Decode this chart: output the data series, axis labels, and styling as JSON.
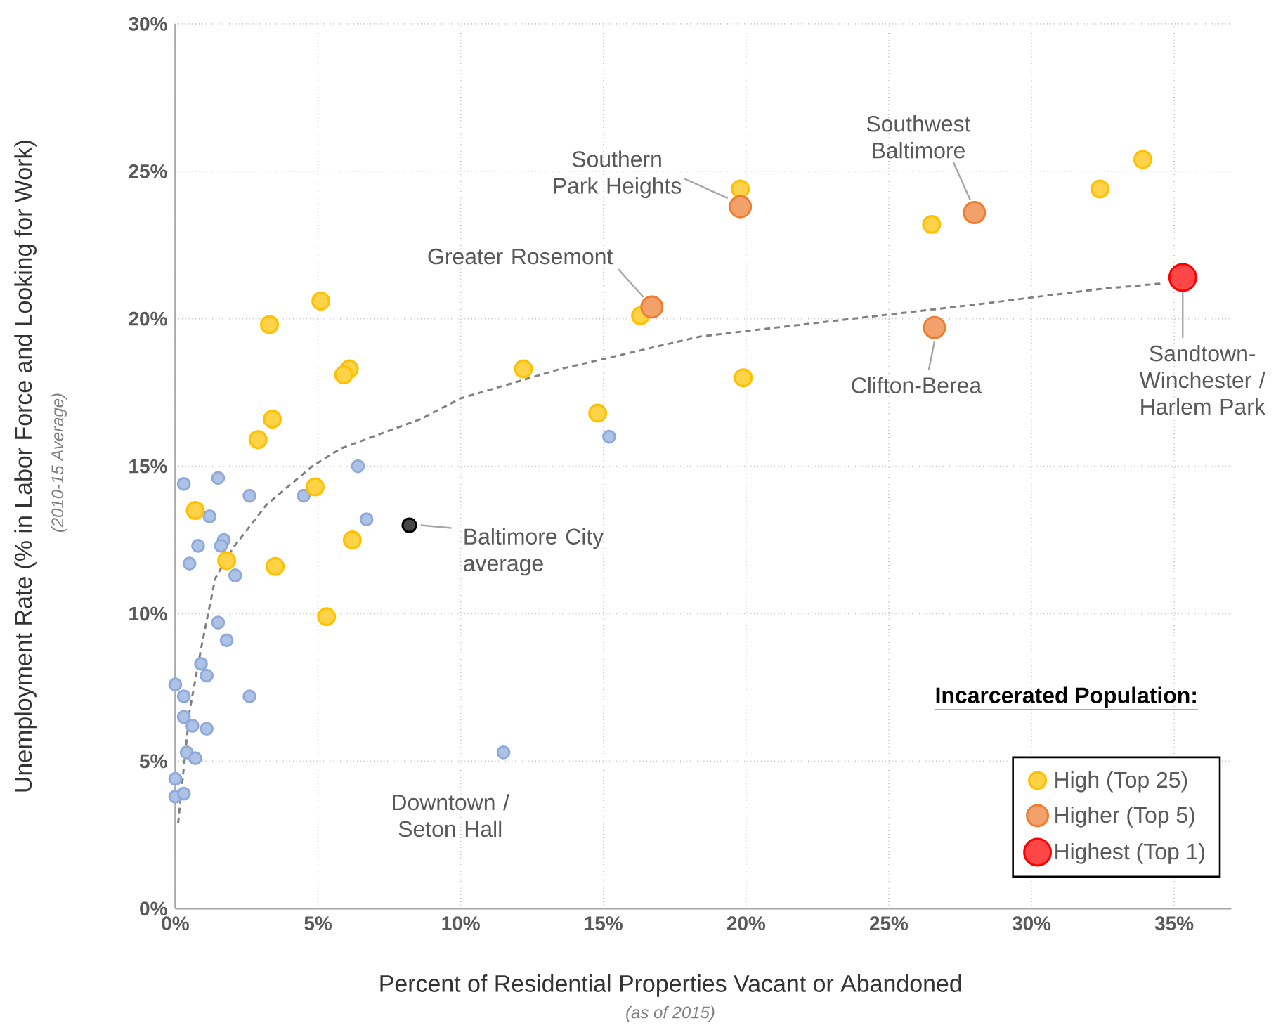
{
  "chart_data": {
    "type": "scatter",
    "xlabel": "Percent of Residential Properties Vacant or Abandoned",
    "ylabel": "Unemployment Rate (% in Labor Force and Looking for Work)",
    "legend_title": "Incarcerated Population:",
    "legend": "bottom right",
    "grid": true,
    "marker": "circle",
    "xlim": [
      0,
      37
    ],
    "ylim": [
      0,
      30
    ],
    "xticks": [
      {
        "value": 0,
        "label": "0%"
      },
      {
        "value": 5,
        "label": "5%"
      },
      {
        "value": 10,
        "label": "10%"
      },
      {
        "value": 15,
        "label": "15%"
      },
      {
        "value": 20,
        "label": "20%"
      },
      {
        "value": 25,
        "label": "25%"
      },
      {
        "value": 30,
        "label": "30%"
      },
      {
        "value": 35,
        "label": "35%"
      }
    ],
    "yticks": [
      {
        "value": 0,
        "label": "0%"
      },
      {
        "value": 5,
        "label": "5%"
      },
      {
        "value": 10,
        "label": "10%"
      },
      {
        "value": 15,
        "label": "15%"
      },
      {
        "value": 20,
        "label": "20%"
      },
      {
        "value": 25,
        "label": "25%"
      },
      {
        "value": 30,
        "label": "30%"
      }
    ],
    "series": [
      {
        "color": "#8eaadb",
        "x": [
          0.3,
          1.5,
          2.6,
          4.5,
          6.4,
          1.2,
          6.7,
          0.8,
          1.7,
          1.6,
          0.5,
          2.1,
          1.5,
          1.8,
          0.9,
          1.1,
          0.0,
          0.3,
          2.6,
          0.3,
          0.6,
          1.1,
          0.4,
          0.7,
          0.0,
          0.0,
          0.3,
          15.2,
          11.5
        ],
        "values": [
          14.4,
          14.6,
          14.0,
          14.0,
          15.0,
          13.3,
          13.2,
          12.3,
          12.5,
          12.3,
          11.7,
          11.3,
          9.7,
          9.1,
          8.3,
          7.9,
          7.6,
          7.2,
          7.2,
          6.5,
          6.2,
          6.1,
          5.3,
          5.1,
          4.4,
          3.8,
          3.9,
          16.0,
          5.3
        ]
      },
      {
        "color": "#000000",
        "x": [
          8.2
        ],
        "values": [
          13.0
        ]
      },
      {
        "name": "High (Top 25)",
        "color": "#ffc000",
        "x": [
          0.7,
          4.9,
          6.2,
          1.8,
          3.5,
          5.3,
          5.1,
          3.3,
          6.1,
          5.9,
          3.4,
          2.9,
          19.8,
          33.9,
          32.4,
          26.5,
          16.3,
          19.9,
          14.8,
          12.2
        ],
        "values": [
          13.5,
          14.3,
          12.5,
          11.8,
          11.6,
          9.9,
          20.6,
          19.8,
          18.3,
          18.1,
          16.6,
          15.9,
          24.4,
          25.4,
          24.4,
          23.2,
          20.1,
          18.0,
          16.8,
          18.3
        ]
      },
      {
        "name": "Higher (Top 5)",
        "color": "#ed7d31",
        "x": [
          19.8,
          28.0,
          16.7,
          26.6
        ],
        "values": [
          23.8,
          23.6,
          20.4,
          19.7
        ]
      },
      {
        "name": "Highest (Top 1)",
        "color": "#ff0000",
        "x": [
          35.3
        ],
        "values": [
          21.4
        ]
      },
      {
        "type": "line",
        "marker": "none",
        "line_style": "dashed",
        "color": "#808080",
        "x": [
          0.1,
          0.5,
          0.9,
          1.4,
          2.0,
          3.2,
          4.8,
          5.8,
          8.6,
          10.0,
          13.5,
          18.4,
          23.7,
          28.2,
          32.3,
          34.6
        ],
        "values": [
          2.9,
          6.7,
          8.8,
          11.2,
          12.2,
          13.7,
          15.0,
          15.6,
          16.6,
          17.3,
          18.3,
          19.4,
          20.0,
          20.5,
          21.0,
          21.2
        ]
      }
    ],
    "annotations": [
      {
        "text": "Southern Park Heights",
        "x": 19.8,
        "y": 23.8
      },
      {
        "text": "Southwest Baltimore",
        "x": 28.0,
        "y": 23.6
      },
      {
        "text": "Greater Rosemont",
        "x": 16.7,
        "y": 20.4
      },
      {
        "text": "Clifton-Berea",
        "x": 26.6,
        "y": 19.7
      },
      {
        "text": "Sandtown-Winchester / Harlem Park",
        "x": 35.3,
        "y": 21.4
      },
      {
        "text": "Baltimore City average",
        "x": 8.2,
        "y": 13.0
      },
      {
        "text": "Downtown / Seton Hall",
        "x": 11.5,
        "y": 5.3
      },
      "(2010-15  Average)",
      "(as of 2015)"
    ]
  }
}
